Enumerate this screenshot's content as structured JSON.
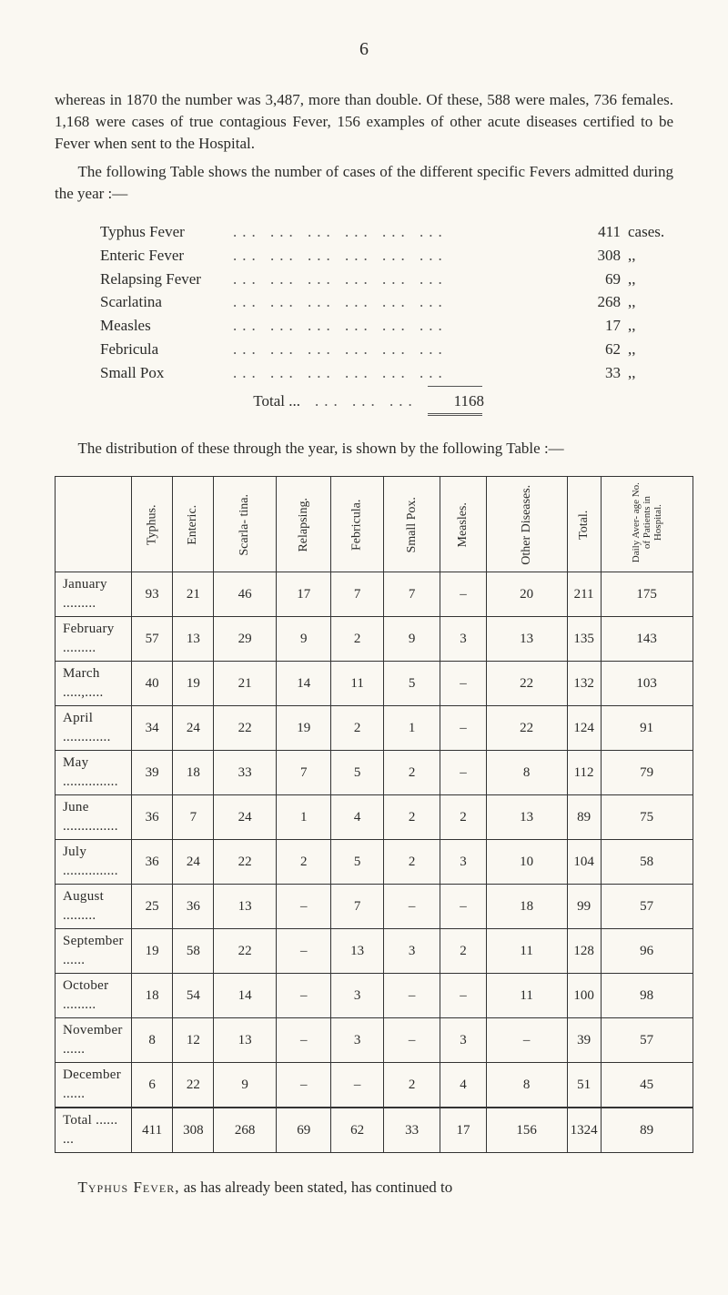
{
  "page_number": "6",
  "para1": "whereas in 1870 the number was 3,487, more than double. Of these, 588 were males, 736 females. 1,168 were cases of true contagious Fever, 156 examples of other acute diseases certified to be Fever when sent to the Hospital.",
  "para2": "The following Table shows the number of cases of the different specific Fevers admitted during the year :—",
  "cases": {
    "rows": [
      {
        "label": "Typhus Fever",
        "num": "411",
        "unit": "cases."
      },
      {
        "label": "Enteric Fever",
        "num": "308",
        "unit": ",,"
      },
      {
        "label": "Relapsing Fever",
        "num": "69",
        "unit": ",,"
      },
      {
        "label": "Scarlatina",
        "num": "268",
        "unit": ",,"
      },
      {
        "label": "Measles",
        "num": "17",
        "unit": ",,"
      },
      {
        "label": "Febricula",
        "num": "62",
        "unit": ",,"
      },
      {
        "label": "Small Pox",
        "num": "33",
        "unit": ",,"
      }
    ],
    "total_label": "Total",
    "total_num": "1168"
  },
  "para3": "The distribution of these through the year, is shown by the following Table :—",
  "dist": {
    "headers": [
      "Typhus.",
      "Enteric.",
      "Scarla-\ntina.",
      "Relapsing.",
      "Febricula.",
      "Small\nPox.",
      "Measles.",
      "Other\nDiseases.",
      "Total.",
      "Daily Aver-\nage No. of\nPatients in\nHospital."
    ],
    "rows": [
      {
        "m": "January .........",
        "c": [
          "93",
          "21",
          "46",
          "17",
          "7",
          "7",
          "–",
          "20",
          "211",
          "175"
        ]
      },
      {
        "m": "February .........",
        "c": [
          "57",
          "13",
          "29",
          "9",
          "2",
          "9",
          "3",
          "13",
          "135",
          "143"
        ]
      },
      {
        "m": "March .....,.....",
        "c": [
          "40",
          "19",
          "21",
          "14",
          "11",
          "5",
          "–",
          "22",
          "132",
          "103"
        ]
      },
      {
        "m": "April .............",
        "c": [
          "34",
          "24",
          "22",
          "19",
          "2",
          "1",
          "–",
          "22",
          "124",
          "91"
        ]
      },
      {
        "m": "May ...............",
        "c": [
          "39",
          "18",
          "33",
          "7",
          "5",
          "2",
          "–",
          "8",
          "112",
          "79"
        ]
      },
      {
        "m": "June ...............",
        "c": [
          "36",
          "7",
          "24",
          "1",
          "4",
          "2",
          "2",
          "13",
          "89",
          "75"
        ]
      },
      {
        "m": "July ...............",
        "c": [
          "36",
          "24",
          "22",
          "2",
          "5",
          "2",
          "3",
          "10",
          "104",
          "58"
        ]
      },
      {
        "m": "August .........",
        "c": [
          "25",
          "36",
          "13",
          "–",
          "7",
          "–",
          "–",
          "18",
          "99",
          "57"
        ]
      },
      {
        "m": "September ......",
        "c": [
          "19",
          "58",
          "22",
          "–",
          "13",
          "3",
          "2",
          "11",
          "128",
          "96"
        ]
      },
      {
        "m": "October .........",
        "c": [
          "18",
          "54",
          "14",
          "–",
          "3",
          "–",
          "–",
          "11",
          "100",
          "98"
        ]
      },
      {
        "m": "November ......",
        "c": [
          "8",
          "12",
          "13",
          "–",
          "3",
          "–",
          "3",
          "–",
          "39",
          "57"
        ]
      },
      {
        "m": "December ......",
        "c": [
          "6",
          "22",
          "9",
          "–",
          "–",
          "2",
          "4",
          "8",
          "51",
          "45"
        ]
      }
    ],
    "total": {
      "m": "Total ...... ...",
      "c": [
        "411",
        "308",
        "268",
        "69",
        "62",
        "33",
        "17",
        "156",
        "1324",
        "89"
      ]
    }
  },
  "para4_pre": "Typhus Fever,",
  "para4_rest": " as has already been stated, has continued to"
}
